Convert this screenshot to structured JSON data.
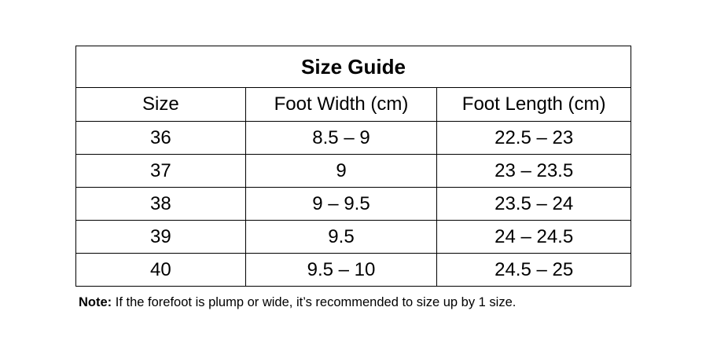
{
  "title": "Size Guide",
  "columns": [
    "Size",
    "Foot Width (cm)",
    "Foot Length (cm)"
  ],
  "rows": [
    [
      "36",
      "8.5 – 9",
      "22.5 – 23"
    ],
    [
      "37",
      "9",
      "23 – 23.5"
    ],
    [
      "38",
      "9 – 9.5",
      "23.5 – 24"
    ],
    [
      "39",
      "9.5",
      "24 – 24.5"
    ],
    [
      "40",
      "9.5 – 10",
      "24.5 – 25"
    ]
  ],
  "note": {
    "label": "Note:",
    "text": " If the forefoot is plump or wide, it’s recommended to size up by 1 size."
  }
}
